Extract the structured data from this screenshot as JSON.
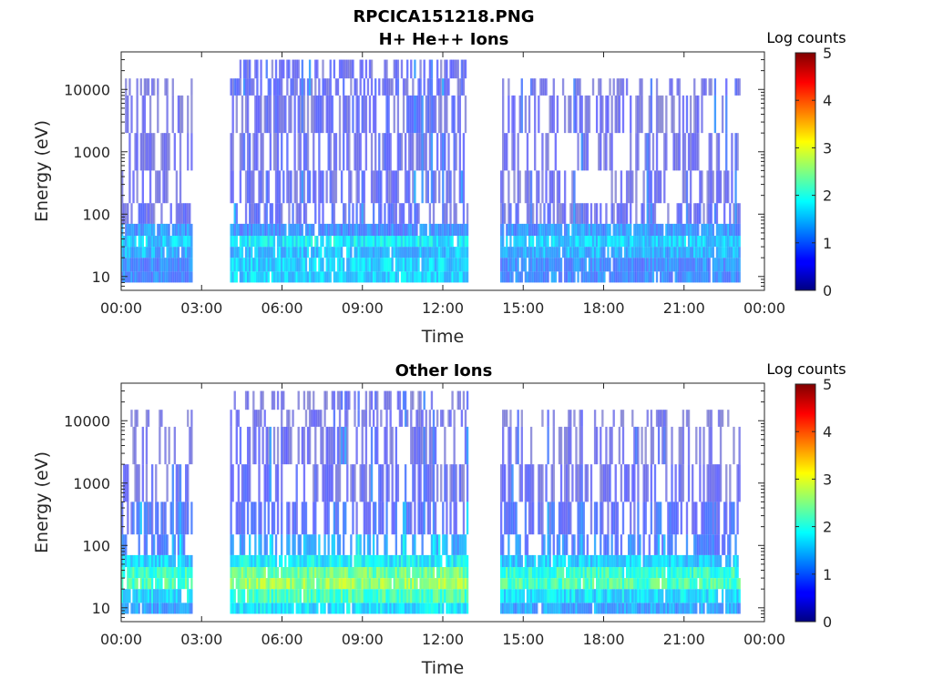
{
  "figure": {
    "title": "RPCICA151218.PNG"
  },
  "chart_data": [
    {
      "type": "heatmap",
      "title": "H+ He++ Ions",
      "xlabel": "Time",
      "ylabel": "Energy (eV)",
      "x_ticks": [
        "00:00",
        "03:00",
        "06:00",
        "09:00",
        "12:00",
        "15:00",
        "18:00",
        "21:00",
        "00:00"
      ],
      "xlim_hours": [
        0,
        24
      ],
      "y_scale": "log",
      "y_ticks": [
        "10",
        "100",
        "1000",
        "10000"
      ],
      "ylim": [
        6,
        40000
      ],
      "data_gaps_hours": [
        [
          2.6,
          4.0
        ],
        [
          12.9,
          14.1
        ]
      ],
      "data_end_hours": 23.1,
      "colorbar": {
        "label": "Log counts",
        "min": 0,
        "max": 5,
        "ticks": [
          "0",
          "1",
          "2",
          "3",
          "4",
          "5"
        ],
        "colormap": "jet"
      },
      "intensity_profile": {
        "energy_eV": [
          8,
          12,
          20,
          30,
          45,
          70,
          150,
          500,
          2000,
          8000,
          15000,
          30000
        ],
        "log_counts_active": [
          1.6,
          1.6,
          1.5,
          1.8,
          1.1,
          0.6,
          0.5,
          0.5,
          0.5,
          0.5,
          0.4,
          0.0
        ],
        "log_counts_quiet": [
          1.1,
          1.1,
          1.4,
          1.6,
          1.2,
          0.5,
          0.3,
          0.3,
          0.3,
          0.2,
          0.0,
          0.0
        ]
      }
    },
    {
      "type": "heatmap",
      "title": "Other Ions",
      "xlabel": "Time",
      "ylabel": "Energy (eV)",
      "x_ticks": [
        "00:00",
        "03:00",
        "06:00",
        "09:00",
        "12:00",
        "15:00",
        "18:00",
        "21:00",
        "00:00"
      ],
      "xlim_hours": [
        0,
        24
      ],
      "y_scale": "log",
      "y_ticks": [
        "10",
        "100",
        "1000",
        "10000"
      ],
      "ylim": [
        6,
        40000
      ],
      "data_gaps_hours": [
        [
          2.6,
          4.0
        ],
        [
          12.9,
          14.1
        ]
      ],
      "data_end_hours": 23.1,
      "colorbar": {
        "label": "Log counts",
        "min": 0,
        "max": 5,
        "ticks": [
          "0",
          "1",
          "2",
          "3",
          "4",
          "5"
        ],
        "colormap": "jet"
      },
      "intensity_profile": {
        "energy_eV": [
          8,
          12,
          20,
          30,
          45,
          70,
          150,
          500,
          2000,
          8000,
          15000,
          30000
        ],
        "log_counts_active": [
          1.7,
          2.2,
          2.6,
          2.4,
          1.8,
          1.3,
          0.8,
          0.5,
          0.4,
          0.3,
          0.2,
          0.0
        ],
        "log_counts_quiet": [
          1.3,
          1.7,
          2.2,
          2.1,
          1.6,
          1.0,
          0.7,
          0.4,
          0.2,
          0.1,
          0.0,
          0.0
        ]
      }
    }
  ],
  "colors": {
    "axis": "#262626",
    "background": "#ffffff"
  }
}
